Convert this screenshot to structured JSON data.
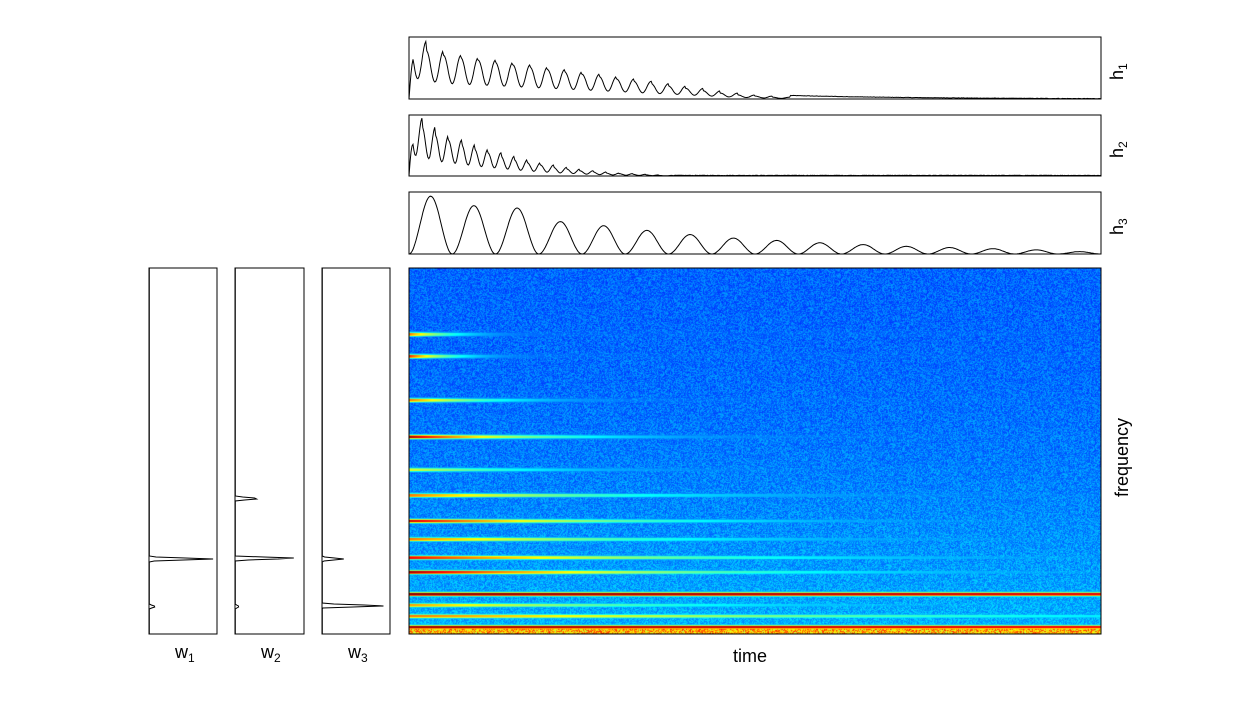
{
  "chart_data": [
    {
      "type": "line",
      "ylabel": "h",
      "ylabel_sub": "1",
      "decay": "slow",
      "peaks": [
        0.98,
        0.82,
        0.74,
        0.7,
        0.66,
        0.62,
        0.58,
        0.54,
        0.5,
        0.46,
        0.42,
        0.38,
        0.34,
        0.3,
        0.26,
        0.22,
        0.18,
        0.14,
        0.1,
        0.07,
        0.05,
        0.03
      ]
    },
    {
      "type": "line",
      "ylabel": "h",
      "ylabel_sub": "2",
      "decay": "fast",
      "peaks": [
        1.0,
        0.85,
        0.7,
        0.62,
        0.54,
        0.46,
        0.4,
        0.34,
        0.28,
        0.23,
        0.19,
        0.15,
        0.12,
        0.09,
        0.07,
        0.05,
        0.04,
        0.03,
        0.02,
        0.01
      ]
    },
    {
      "type": "line",
      "ylabel": "h",
      "ylabel_sub": "3",
      "humps": 16,
      "peaks": [
        0.98,
        0.82,
        0.78,
        0.55,
        0.48,
        0.4,
        0.33,
        0.27,
        0.23,
        0.19,
        0.16,
        0.13,
        0.11,
        0.09,
        0.07,
        0.04
      ]
    },
    {
      "type": "heatmap",
      "xlabel": "time",
      "ylabel": "frequency",
      "colormap": [
        "#00008f",
        "#0000ff",
        "#0080ff",
        "#00ffff",
        "#80ff80",
        "#ffff00",
        "#ff8000",
        "#ff0000",
        "#800000"
      ],
      "partials": [
        {
          "f": 0.18,
          "strength": 0.7,
          "decay": 0.06
        },
        {
          "f": 0.24,
          "strength": 0.8,
          "decay": 0.06
        },
        {
          "f": 0.36,
          "strength": 0.7,
          "decay": 0.12
        },
        {
          "f": 0.46,
          "strength": 0.95,
          "decay": 0.18
        },
        {
          "f": 0.55,
          "strength": 0.5,
          "decay": 0.2
        },
        {
          "f": 0.62,
          "strength": 0.7,
          "decay": 0.3
        },
        {
          "f": 0.69,
          "strength": 0.9,
          "decay": 0.3
        },
        {
          "f": 0.74,
          "strength": 0.7,
          "decay": 0.35
        },
        {
          "f": 0.79,
          "strength": 0.85,
          "decay": 0.4
        },
        {
          "f": 0.83,
          "strength": 0.95,
          "decay": 0.4
        },
        {
          "f": 0.89,
          "strength": 0.98,
          "decay": 9.0
        },
        {
          "f": 0.92,
          "strength": 0.65,
          "decay": 0.4
        },
        {
          "f": 0.95,
          "strength": 0.7,
          "decay": 0.8
        },
        {
          "f": 0.98,
          "strength": 0.95,
          "decay": 9.0
        }
      ]
    },
    {
      "type": "line",
      "xlabel": "w",
      "xlabel_sub": "1",
      "spikes": [
        {
          "f": 0.795,
          "amp": 0.95
        },
        {
          "f": 0.925,
          "amp": 0.1
        }
      ]
    },
    {
      "type": "line",
      "xlabel": "w",
      "xlabel_sub": "2",
      "spikes": [
        {
          "f": 0.63,
          "amp": 0.38
        },
        {
          "f": 0.793,
          "amp": 0.95
        },
        {
          "f": 0.925,
          "amp": 0.06
        }
      ]
    },
    {
      "type": "line",
      "xlabel": "w",
      "xlabel_sub": "3",
      "spikes": [
        {
          "f": 0.795,
          "amp": 0.32
        },
        {
          "f": 0.923,
          "amp": 0.98
        }
      ]
    }
  ]
}
